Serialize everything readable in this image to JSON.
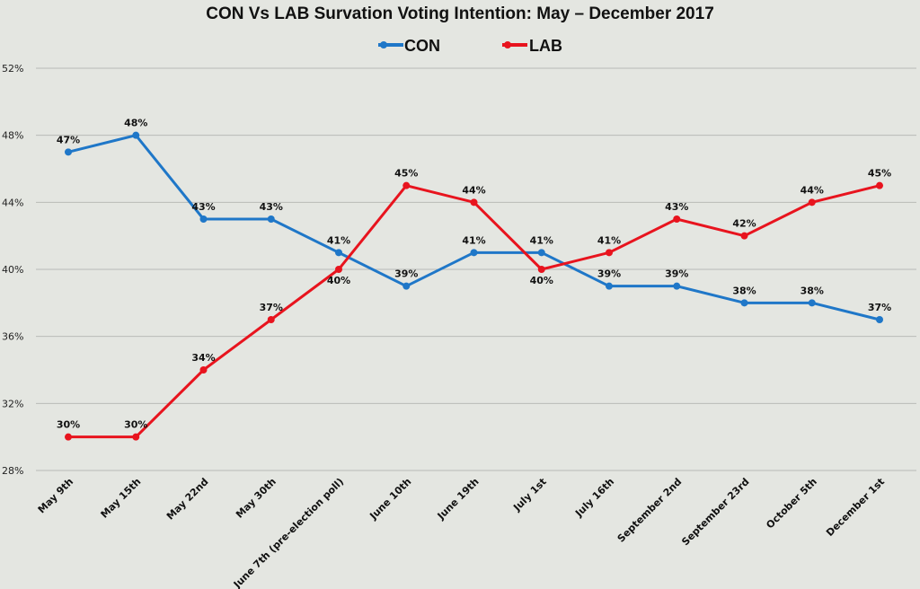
{
  "chart_data": {
    "type": "line",
    "title": "CON Vs LAB Survation Voting Intention: May – December 2017",
    "categories": [
      "May 9th",
      "May 15th",
      "May 22nd",
      "May 30th",
      "June 7th (pre-election poll)",
      "June 10th",
      "June 19th",
      "July 1st",
      "July 16th",
      "September 2nd",
      "September 23rd",
      "October 5th",
      "December 1st"
    ],
    "series": [
      {
        "name": "CON",
        "color": "#1f77c8",
        "values": [
          47,
          48,
          43,
          43,
          41,
          39,
          41,
          41,
          39,
          39,
          38,
          38,
          37
        ],
        "labels": [
          "47%",
          "48%",
          "43%",
          "43%",
          "41%",
          "39%",
          "41%",
          "41%",
          "39%",
          "39%",
          "38%",
          "38%",
          "37%"
        ]
      },
      {
        "name": "LAB",
        "color": "#e8141e",
        "values": [
          30,
          30,
          34,
          37,
          40,
          45,
          44,
          40,
          41,
          43,
          42,
          44,
          45
        ],
        "labels": [
          "30%",
          "30%",
          "34%",
          "37%",
          "40%",
          "45%",
          "44%",
          "40%",
          "41%",
          "43%",
          "42%",
          "44%",
          "45%"
        ]
      }
    ],
    "ylim": [
      28,
      52
    ],
    "yticks": [
      28,
      32,
      36,
      40,
      44,
      48,
      52
    ],
    "ytick_labels": [
      "28%",
      "32%",
      "36%",
      "40%",
      "44%",
      "48%",
      "52%"
    ],
    "grid": true,
    "legend_position": "top-center"
  }
}
